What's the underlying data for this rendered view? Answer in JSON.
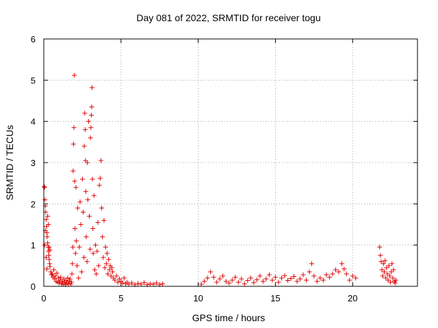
{
  "chart_data": {
    "type": "scatter",
    "title": "Day 081 of 2022, SRMTID for receiver togu",
    "xlabel": "GPS time / hours",
    "ylabel": "SRMTID / TECUs",
    "xlim": [
      0,
      24.2
    ],
    "ylim": [
      0,
      6
    ],
    "xticks": [
      0,
      5,
      10,
      15,
      20
    ],
    "yticks": [
      0,
      1,
      2,
      3,
      4,
      5,
      6
    ],
    "xtick_labels": [
      "0",
      "5",
      "10",
      "15",
      "20"
    ],
    "ytick_labels": [
      "0",
      "1",
      "2",
      "3",
      "4",
      "5",
      "6"
    ],
    "grid": true,
    "marker": "+",
    "marker_color": "#e00000",
    "series": [
      {
        "name": "SRMTID",
        "points": [
          [
            0.02,
            2.42
          ],
          [
            0.05,
            2.4
          ],
          [
            0.08,
            2.1
          ],
          [
            0.1,
            1.95
          ],
          [
            0.12,
            1.8
          ],
          [
            0.15,
            1.62
          ],
          [
            0.18,
            1.45
          ],
          [
            0.2,
            1.3
          ],
          [
            0.22,
            1.2
          ],
          [
            0.25,
            1.05
          ],
          [
            0.28,
            0.95
          ],
          [
            0.3,
            0.85
          ],
          [
            0.33,
            0.75
          ],
          [
            0.35,
            0.65
          ],
          [
            0.38,
            0.55
          ],
          [
            0.4,
            0.48
          ],
          [
            0.05,
            1.0
          ],
          [
            0.1,
            1.35
          ],
          [
            0.15,
            0.7
          ],
          [
            0.2,
            0.42
          ],
          [
            0.25,
            1.7
          ],
          [
            0.3,
            1.5
          ],
          [
            0.35,
            0.95
          ],
          [
            0.4,
            0.88
          ],
          [
            0.45,
            0.35
          ],
          [
            0.5,
            0.28
          ],
          [
            0.55,
            0.3
          ],
          [
            0.6,
            0.22
          ],
          [
            0.65,
            0.4
          ],
          [
            0.7,
            0.18
          ],
          [
            0.75,
            0.25
          ],
          [
            0.8,
            0.12
          ],
          [
            0.85,
            0.32
          ],
          [
            0.9,
            0.1
          ],
          [
            0.95,
            0.2
          ],
          [
            1.0,
            0.08
          ],
          [
            1.05,
            0.15
          ],
          [
            1.1,
            0.22
          ],
          [
            1.15,
            0.06
          ],
          [
            1.2,
            0.12
          ],
          [
            1.25,
            0.05
          ],
          [
            1.3,
            0.18
          ],
          [
            1.35,
            0.1
          ],
          [
            1.4,
            0.04
          ],
          [
            1.45,
            0.14
          ],
          [
            1.5,
            0.08
          ],
          [
            1.55,
            0.2
          ],
          [
            1.6,
            0.06
          ],
          [
            1.65,
            0.12
          ],
          [
            1.7,
            0.18
          ],
          [
            1.75,
            0.05
          ],
          [
            1.8,
            0.1
          ],
          [
            1.82,
            0.3
          ],
          [
            1.85,
            0.55
          ],
          [
            1.88,
            0.95
          ],
          [
            1.9,
            2.8
          ],
          [
            1.92,
            3.45
          ],
          [
            1.95,
            3.85
          ],
          [
            1.98,
            5.12
          ],
          [
            2.0,
            2.55
          ],
          [
            2.02,
            1.4
          ],
          [
            2.05,
            0.8
          ],
          [
            2.08,
            2.4
          ],
          [
            2.1,
            1.1
          ],
          [
            2.15,
            0.5
          ],
          [
            2.2,
            1.9
          ],
          [
            2.25,
            0.2
          ],
          [
            2.3,
            0.95
          ],
          [
            2.35,
            2.05
          ],
          [
            2.4,
            1.5
          ],
          [
            2.45,
            0.35
          ],
          [
            2.5,
            2.6
          ],
          [
            2.55,
            1.8
          ],
          [
            2.6,
            0.7
          ],
          [
            2.62,
            3.4
          ],
          [
            2.65,
            4.2
          ],
          [
            2.68,
            3.8
          ],
          [
            2.7,
            3.05
          ],
          [
            2.72,
            2.3
          ],
          [
            2.75,
            1.2
          ],
          [
            2.8,
            0.6
          ],
          [
            2.82,
            3.0
          ],
          [
            2.85,
            2.1
          ],
          [
            2.9,
            4.0
          ],
          [
            2.95,
            1.7
          ],
          [
            3.0,
            0.9
          ],
          [
            3.02,
            3.6
          ],
          [
            3.05,
            3.85
          ],
          [
            3.08,
            4.15
          ],
          [
            3.1,
            4.35
          ],
          [
            3.12,
            4.82
          ],
          [
            3.15,
            2.6
          ],
          [
            3.18,
            1.4
          ],
          [
            3.2,
            0.8
          ],
          [
            3.25,
            2.2
          ],
          [
            3.3,
            0.4
          ],
          [
            3.35,
            1.0
          ],
          [
            3.4,
            0.3
          ],
          [
            3.45,
            0.85
          ],
          [
            3.5,
            1.55
          ],
          [
            3.55,
            0.5
          ],
          [
            3.6,
            2.45
          ],
          [
            3.65,
            2.62
          ],
          [
            3.7,
            3.05
          ],
          [
            3.75,
            1.9
          ],
          [
            3.8,
            1.2
          ],
          [
            3.85,
            0.7
          ],
          [
            3.9,
            1.6
          ],
          [
            3.95,
            0.45
          ],
          [
            4.0,
            0.95
          ],
          [
            4.05,
            0.55
          ],
          [
            4.1,
            0.8
          ],
          [
            4.15,
            0.3
          ],
          [
            4.2,
            0.65
          ],
          [
            4.25,
            0.4
          ],
          [
            4.3,
            0.5
          ],
          [
            4.35,
            0.25
          ],
          [
            4.4,
            0.45
          ],
          [
            4.45,
            0.35
          ],
          [
            4.5,
            0.2
          ],
          [
            4.6,
            0.15
          ],
          [
            4.7,
            0.25
          ],
          [
            4.8,
            0.1
          ],
          [
            4.9,
            0.18
          ],
          [
            5.0,
            0.12
          ],
          [
            5.1,
            0.08
          ],
          [
            5.2,
            0.2
          ],
          [
            5.3,
            0.06
          ],
          [
            5.4,
            0.1
          ],
          [
            5.5,
            0.05
          ],
          [
            5.7,
            0.08
          ],
          [
            5.9,
            0.04
          ],
          [
            6.1,
            0.07
          ],
          [
            6.3,
            0.05
          ],
          [
            6.5,
            0.09
          ],
          [
            6.7,
            0.04
          ],
          [
            6.9,
            0.06
          ],
          [
            7.1,
            0.05
          ],
          [
            7.3,
            0.08
          ],
          [
            7.5,
            0.04
          ],
          [
            7.7,
            0.06
          ],
          [
            10.2,
            0.05
          ],
          [
            10.4,
            0.12
          ],
          [
            10.6,
            0.2
          ],
          [
            10.8,
            0.35
          ],
          [
            11.0,
            0.22
          ],
          [
            11.2,
            0.1
          ],
          [
            11.4,
            0.18
          ],
          [
            11.6,
            0.25
          ],
          [
            11.8,
            0.12
          ],
          [
            12.0,
            0.08
          ],
          [
            12.2,
            0.15
          ],
          [
            12.4,
            0.22
          ],
          [
            12.6,
            0.1
          ],
          [
            12.8,
            0.18
          ],
          [
            13.0,
            0.06
          ],
          [
            13.2,
            0.14
          ],
          [
            13.4,
            0.2
          ],
          [
            13.6,
            0.09
          ],
          [
            13.8,
            0.16
          ],
          [
            14.0,
            0.25
          ],
          [
            14.2,
            0.12
          ],
          [
            14.4,
            0.18
          ],
          [
            14.6,
            0.28
          ],
          [
            14.8,
            0.15
          ],
          [
            15.0,
            0.22
          ],
          [
            15.2,
            0.1
          ],
          [
            15.4,
            0.2
          ],
          [
            15.6,
            0.26
          ],
          [
            15.8,
            0.14
          ],
          [
            16.0,
            0.19
          ],
          [
            16.2,
            0.24
          ],
          [
            16.4,
            0.12
          ],
          [
            16.6,
            0.18
          ],
          [
            16.8,
            0.28
          ],
          [
            17.0,
            0.15
          ],
          [
            17.2,
            0.35
          ],
          [
            17.35,
            0.55
          ],
          [
            17.5,
            0.25
          ],
          [
            17.7,
            0.12
          ],
          [
            17.9,
            0.2
          ],
          [
            18.1,
            0.15
          ],
          [
            18.3,
            0.28
          ],
          [
            18.5,
            0.22
          ],
          [
            18.7,
            0.3
          ],
          [
            18.9,
            0.4
          ],
          [
            19.1,
            0.35
          ],
          [
            19.3,
            0.55
          ],
          [
            19.45,
            0.42
          ],
          [
            19.6,
            0.3
          ],
          [
            19.8,
            0.15
          ],
          [
            20.0,
            0.25
          ],
          [
            20.2,
            0.2
          ],
          [
            21.75,
            0.95
          ],
          [
            21.8,
            0.75
          ],
          [
            21.85,
            0.6
          ],
          [
            21.9,
            0.4
          ],
          [
            21.95,
            0.25
          ],
          [
            22.0,
            0.55
          ],
          [
            22.05,
            0.35
          ],
          [
            22.1,
            0.62
          ],
          [
            22.15,
            0.2
          ],
          [
            22.2,
            0.45
          ],
          [
            22.25,
            0.3
          ],
          [
            22.3,
            0.15
          ],
          [
            22.35,
            0.5
          ],
          [
            22.4,
            0.25
          ],
          [
            22.45,
            0.1
          ],
          [
            22.5,
            0.35
          ],
          [
            22.55,
            0.55
          ],
          [
            22.6,
            0.2
          ],
          [
            22.65,
            0.4
          ],
          [
            22.7,
            0.12
          ],
          [
            22.75,
            0.08
          ],
          [
            22.8,
            0.15
          ]
        ]
      }
    ]
  }
}
